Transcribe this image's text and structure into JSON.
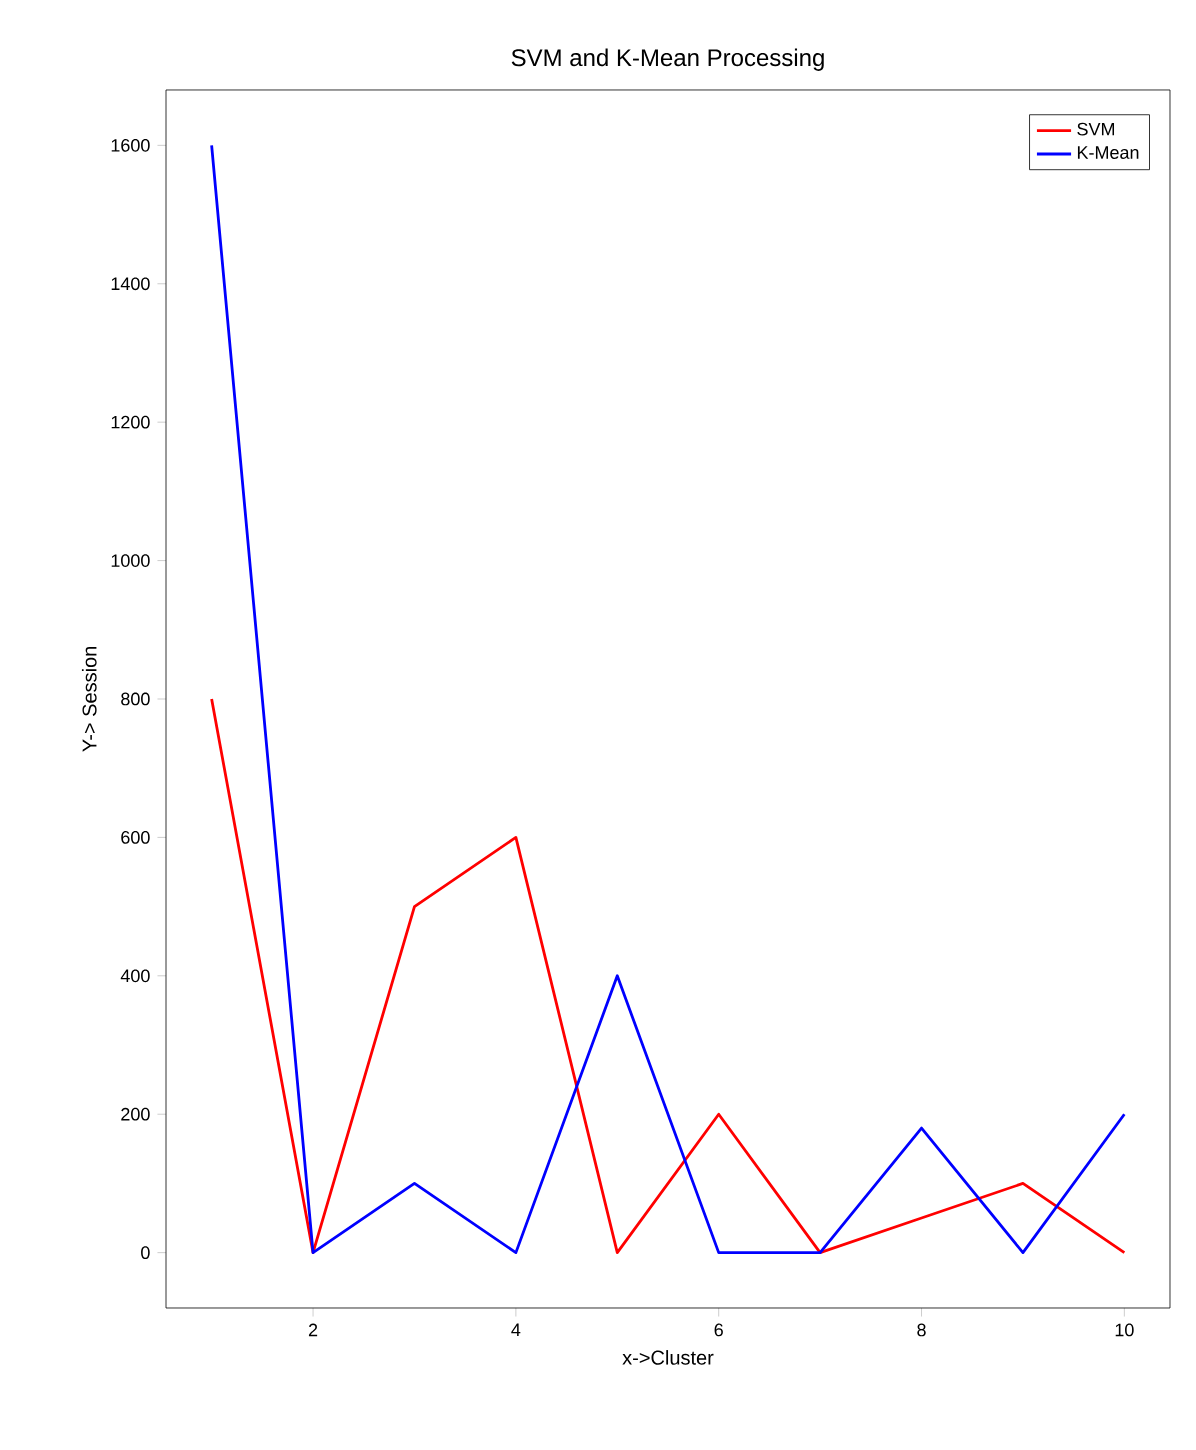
{
  "chart_data": {
    "type": "line",
    "title": "SVM and K-Mean Processing",
    "xlabel": "x->Cluster",
    "ylabel": "Y-> Session",
    "x": [
      1,
      2,
      3,
      4,
      5,
      6,
      7,
      8,
      9,
      10
    ],
    "series": [
      {
        "name": "SVM",
        "color": "#ff0000",
        "values": [
          800,
          0,
          500,
          600,
          0,
          200,
          0,
          50,
          100,
          0
        ]
      },
      {
        "name": "K-Mean",
        "color": "#0000ff",
        "values": [
          1600,
          0,
          100,
          0,
          400,
          0,
          0,
          180,
          0,
          200
        ]
      }
    ],
    "xlim": [
      0.55,
      10.45
    ],
    "ylim": [
      -80,
      1680
    ],
    "xticks": [
      2,
      4,
      6,
      8,
      10
    ],
    "yticks": [
      0,
      200,
      400,
      600,
      800,
      1000,
      1200,
      1400,
      1600
    ],
    "legend": "top right",
    "grid": false,
    "marker": "none",
    "line_style": "solid"
  }
}
